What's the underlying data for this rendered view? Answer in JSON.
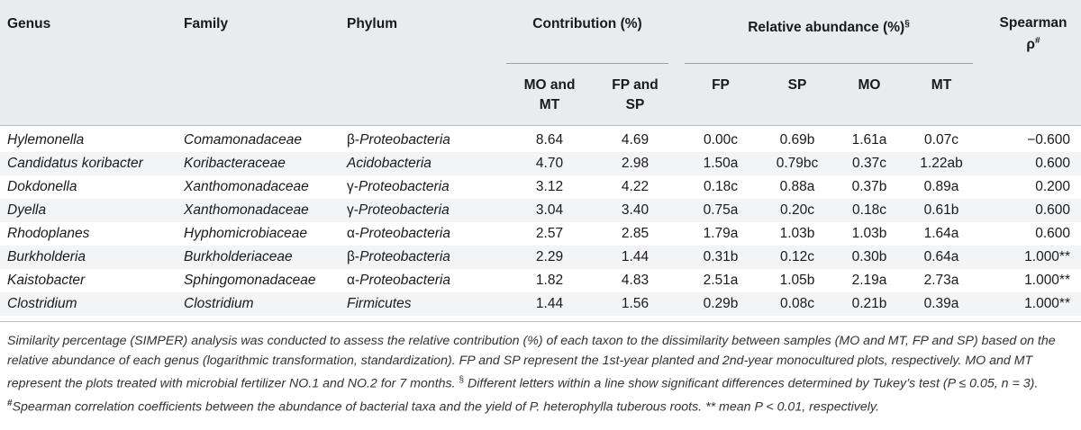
{
  "table": {
    "headers": {
      "genus": "Genus",
      "family": "Family",
      "phylum": "Phylum",
      "contribution": "Contribution (%)",
      "relative_abundance": "Relative abundance (%)",
      "relative_abundance_sup": "§",
      "spearman": "Spearman",
      "spearman_rho": "ρ",
      "spearman_sup": "#",
      "sub_mo_mt_1": "MO and",
      "sub_mo_mt_2": "MT",
      "sub_fp_sp_1": "FP and",
      "sub_fp_sp_2": "SP",
      "sub_fp": "FP",
      "sub_sp": "SP",
      "sub_mo": "MO",
      "sub_mt": "MT"
    },
    "rows": [
      {
        "genus": "Hylemonella",
        "family": "Comamonadaceae",
        "phylum": "β-Proteobacteria",
        "mo_mt": "8.64",
        "fp_sp": "4.69",
        "fp": "0.00c",
        "sp": "0.69b",
        "mo": "1.61a",
        "mt": "0.07c",
        "rho": "−0.600"
      },
      {
        "genus": "Candidatus koribacter",
        "family": "Koribacteraceae",
        "phylum": "Acidobacteria",
        "mo_mt": "4.70",
        "fp_sp": "2.98",
        "fp": "1.50a",
        "sp": "0.79bc",
        "mo": "0.37c",
        "mt": "1.22ab",
        "rho": "0.600"
      },
      {
        "genus": "Dokdonella",
        "family": "Xanthomonadaceae",
        "phylum": "γ-Proteobacteria",
        "mo_mt": "3.12",
        "fp_sp": "4.22",
        "fp": "0.18c",
        "sp": "0.88a",
        "mo": "0.37b",
        "mt": "0.89a",
        "rho": "0.200"
      },
      {
        "genus": "Dyella",
        "family": "Xanthomonadaceae",
        "phylum": "γ-Proteobacteria",
        "mo_mt": "3.04",
        "fp_sp": "3.40",
        "fp": "0.75a",
        "sp": "0.20c",
        "mo": "0.18c",
        "mt": "0.61b",
        "rho": "0.600"
      },
      {
        "genus": "Rhodoplanes",
        "family": "Hyphomicrobiaceae",
        "phylum": "α-Proteobacteria",
        "mo_mt": "2.57",
        "fp_sp": "2.85",
        "fp": "1.79a",
        "sp": "1.03b",
        "mo": "1.03b",
        "mt": "1.64a",
        "rho": "0.600"
      },
      {
        "genus": "Burkholderia",
        "family": "Burkholderiaceae",
        "phylum": "β-Proteobacteria",
        "mo_mt": "2.29",
        "fp_sp": "1.44",
        "fp": "0.31b",
        "sp": "0.12c",
        "mo": "0.30b",
        "mt": "0.64a",
        "rho": "1.000**"
      },
      {
        "genus": "Kaistobacter",
        "family": "Sphingomonadaceae",
        "phylum": "α-Proteobacteria",
        "mo_mt": "1.82",
        "fp_sp": "4.83",
        "fp": "2.51a",
        "sp": "1.05b",
        "mo": "2.19a",
        "mt": "2.73a",
        "rho": "1.000**"
      },
      {
        "genus": "Clostridium",
        "family": "Clostridium",
        "phylum": "Firmicutes",
        "mo_mt": "1.44",
        "fp_sp": "1.56",
        "fp": "0.29b",
        "sp": "0.08c",
        "mo": "0.21b",
        "mt": "0.39a",
        "rho": "1.000**"
      }
    ]
  },
  "footnote": {
    "p1": "Similarity percentage (SIMPER) analysis was conducted to assess the relative contribution (%) of each taxon to the dissimilarity between samples (MO and MT, FP and SP) based on the relative abundance of each genus (logarithmic transformation, standardization). FP and SP represent the 1st-year planted and 2nd-year monocultured plots, respectively. MO and MT represent the plots treated with microbial fertilizer NO.1 and NO.2 for 7 months.",
    "mark_section": "§",
    "p2": " Different letters within a line show significant differences determined by Tukey’s test (P ≤ 0.05, n = 3).",
    "mark_hash": "#",
    "p3": "Spearman correlation coefficients between the abundance of bacterial taxa and the yield of P. heterophylla tuberous roots.",
    "p4": "** mean P < 0.01, respectively."
  }
}
